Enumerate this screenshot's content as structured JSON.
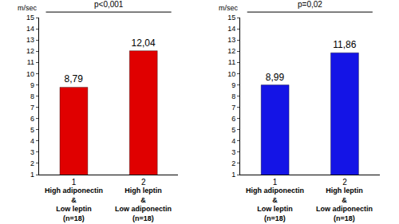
{
  "chart_data": [
    {
      "type": "bar",
      "categories": [
        "1",
        "2"
      ],
      "values": [
        8.79,
        12.04
      ],
      "value_labels": [
        "8,79",
        "12,04"
      ],
      "data_labels": true,
      "color": "#e00000",
      "ylabel": "m/sec",
      "ylim": [
        1,
        15
      ],
      "yticks": [
        1,
        2,
        3,
        4,
        5,
        6,
        7,
        8,
        9,
        10,
        11,
        12,
        13,
        14,
        15
      ],
      "grid": false,
      "annotations": [
        "p<0,001"
      ],
      "category_notes": [
        [
          "High adiponectin",
          "&",
          "Low leptin",
          "(n=18)"
        ],
        [
          "High leptin",
          "&",
          "Low adiponectin",
          "(n=18)"
        ]
      ]
    },
    {
      "type": "bar",
      "categories": [
        "1",
        "2"
      ],
      "values": [
        8.99,
        11.86
      ],
      "value_labels": [
        "8,99",
        "11,86"
      ],
      "data_labels": true,
      "color": "#1414e6",
      "ylabel": "m/sec",
      "ylim": [
        1,
        15
      ],
      "yticks": [
        1,
        2,
        3,
        4,
        5,
        6,
        7,
        8,
        9,
        10,
        11,
        12,
        13,
        14,
        15
      ],
      "grid": false,
      "annotations": [
        "p=0,02"
      ],
      "category_notes": [
        [
          "High adiponectin",
          "&",
          "Low leptin",
          "(n=18)"
        ],
        [
          "High leptin",
          "&",
          "Low adiponectin",
          "(n=18)"
        ]
      ]
    }
  ]
}
